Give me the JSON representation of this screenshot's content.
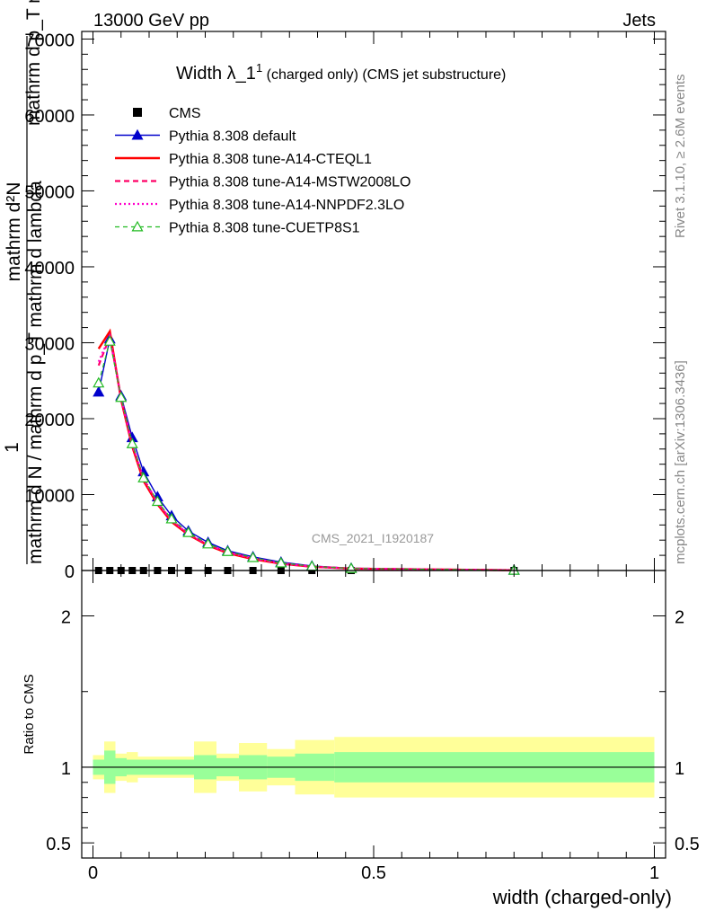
{
  "header": {
    "energy": "13000 GeV pp",
    "process": "Jets"
  },
  "side_labels": {
    "rivet": "Rivet 3.1.10, ≥ 2.6M events",
    "mcplots": "mcplots.cern.ch [arXiv:1306.3436]"
  },
  "colors": {
    "cms": "#000000",
    "default": "#0000cc",
    "ctEQ": "#ff0000",
    "mstw": "#ff0066",
    "nnpdf": "#ff00cc",
    "cuetp": "#22bb22",
    "band_inner": "#99ff99",
    "band_outer": "#ffff99"
  },
  "chart_data": [
    {
      "type": "line",
      "title": "Width λ_1¹ (charged only) (CMS jet substructure)",
      "title_main": "Width λ_1",
      "title_sup": "1",
      "title_rest": " (charged only) (CMS jet substructure)",
      "watermark": "CMS_2021_I1920187",
      "ylabel_numerator": "1",
      "ylabel_denominator": "mathrm d N / mathrm d p_T mathrm d lambda",
      "ylabel_side": "mathrm d²N",
      "ylabel_top": "mathrm d p_T mathrm d lambda",
      "xlim": [
        -0.02,
        1.02
      ],
      "ylim": [
        0,
        71000
      ],
      "yticks": [
        0,
        10000,
        20000,
        30000,
        40000,
        50000,
        60000,
        70000
      ],
      "ytick_labels": [
        "0",
        "10000",
        "20000",
        "30000",
        "40000",
        "50000",
        "60000",
        "70000"
      ],
      "legend_position": "top-left",
      "series": [
        {
          "name": "CMS",
          "style": "points",
          "x": [
            0.01,
            0.03,
            0.05,
            0.07,
            0.09,
            0.115,
            0.14,
            0.17,
            0.205,
            0.24,
            0.285,
            0.335,
            0.39,
            0.46,
            0.75
          ],
          "values": [
            0,
            0,
            0,
            0,
            0,
            0,
            0,
            0,
            0,
            0,
            0,
            0,
            0,
            0,
            0
          ]
        },
        {
          "name": "Pythia 8.308 default",
          "style": "default",
          "x": [
            0.01,
            0.03,
            0.05,
            0.07,
            0.09,
            0.115,
            0.14,
            0.17,
            0.205,
            0.24,
            0.285,
            0.335,
            0.39,
            0.46,
            0.75
          ],
          "values": [
            23500,
            30500,
            23000,
            17500,
            13000,
            9700,
            7200,
            5200,
            3700,
            2600,
            1800,
            1100,
            600,
            300,
            40
          ]
        },
        {
          "name": "Pythia 8.308 tune-A14-CTEQL1",
          "style": "cteq",
          "x": [
            0.01,
            0.03,
            0.05,
            0.07,
            0.09,
            0.115,
            0.14,
            0.17,
            0.205,
            0.24,
            0.285,
            0.335,
            0.39,
            0.46,
            0.75
          ],
          "values": [
            29200,
            31500,
            22500,
            16300,
            11800,
            8700,
            6400,
            4700,
            3300,
            2300,
            1500,
            900,
            500,
            250,
            30
          ]
        },
        {
          "name": "Pythia 8.308 tune-A14-MSTW2008LO",
          "style": "mstw",
          "x": [
            0.01,
            0.03,
            0.05,
            0.07,
            0.09,
            0.115,
            0.14,
            0.17,
            0.205,
            0.24,
            0.285,
            0.335,
            0.39,
            0.46,
            0.75
          ],
          "values": [
            27000,
            30800,
            22700,
            16600,
            12100,
            8900,
            6600,
            4800,
            3400,
            2400,
            1600,
            950,
            520,
            260,
            30
          ]
        },
        {
          "name": "Pythia 8.308 tune-A14-NNPDF2.3LO",
          "style": "nnpdf",
          "x": [
            0.01,
            0.03,
            0.05,
            0.07,
            0.09,
            0.115,
            0.14,
            0.17,
            0.205,
            0.24,
            0.285,
            0.335,
            0.39,
            0.46,
            0.75
          ],
          "values": [
            27500,
            30900,
            22700,
            16600,
            12100,
            8900,
            6600,
            4800,
            3400,
            2400,
            1600,
            950,
            520,
            260,
            30
          ]
        },
        {
          "name": "Pythia 8.308 tune-CUETP8S1",
          "style": "cuetp",
          "x": [
            0.01,
            0.03,
            0.05,
            0.07,
            0.09,
            0.115,
            0.14,
            0.17,
            0.205,
            0.24,
            0.285,
            0.335,
            0.39,
            0.46,
            0.75
          ],
          "values": [
            24700,
            30200,
            22800,
            16700,
            12200,
            9100,
            6800,
            5000,
            3500,
            2500,
            1700,
            1000,
            550,
            270,
            35
          ]
        }
      ]
    },
    {
      "type": "area",
      "ylabel": "Ratio to CMS",
      "xlabel": "width (charged-only)",
      "xlim": [
        -0.02,
        1.02
      ],
      "ylim": [
        0.4,
        2.3
      ],
      "ytick_labels": [
        "0.5",
        "1",
        "2"
      ],
      "yticks": [
        0.5,
        1,
        2
      ],
      "xtick_labels": [
        "0",
        "0.5",
        "1"
      ],
      "xticks": [
        0,
        0.5,
        1
      ],
      "reference": 1,
      "bins": [
        {
          "lo": 0.0,
          "hi": 0.02,
          "inner": [
            0.95,
            1.05
          ],
          "outer": [
            0.92,
            1.08
          ]
        },
        {
          "lo": 0.02,
          "hi": 0.04,
          "inner": [
            0.89,
            1.11
          ],
          "outer": [
            0.83,
            1.17
          ]
        },
        {
          "lo": 0.04,
          "hi": 0.06,
          "inner": [
            0.94,
            1.06
          ],
          "outer": [
            0.91,
            1.09
          ]
        },
        {
          "lo": 0.06,
          "hi": 0.08,
          "inner": [
            0.95,
            1.05
          ],
          "outer": [
            0.9,
            1.1
          ]
        },
        {
          "lo": 0.08,
          "hi": 0.18,
          "inner": [
            0.95,
            1.05
          ],
          "outer": [
            0.93,
            1.07
          ]
        },
        {
          "lo": 0.18,
          "hi": 0.22,
          "inner": [
            0.92,
            1.08
          ],
          "outer": [
            0.83,
            1.17
          ]
        },
        {
          "lo": 0.22,
          "hi": 0.26,
          "inner": [
            0.94,
            1.06
          ],
          "outer": [
            0.91,
            1.09
          ]
        },
        {
          "lo": 0.26,
          "hi": 0.31,
          "inner": [
            0.92,
            1.08
          ],
          "outer": [
            0.84,
            1.16
          ]
        },
        {
          "lo": 0.31,
          "hi": 0.36,
          "inner": [
            0.93,
            1.07
          ],
          "outer": [
            0.88,
            1.12
          ]
        },
        {
          "lo": 0.36,
          "hi": 0.43,
          "inner": [
            0.91,
            1.09
          ],
          "outer": [
            0.82,
            1.18
          ]
        },
        {
          "lo": 0.43,
          "hi": 1.0,
          "inner": [
            0.9,
            1.1
          ],
          "outer": [
            0.8,
            1.2
          ]
        }
      ]
    }
  ]
}
